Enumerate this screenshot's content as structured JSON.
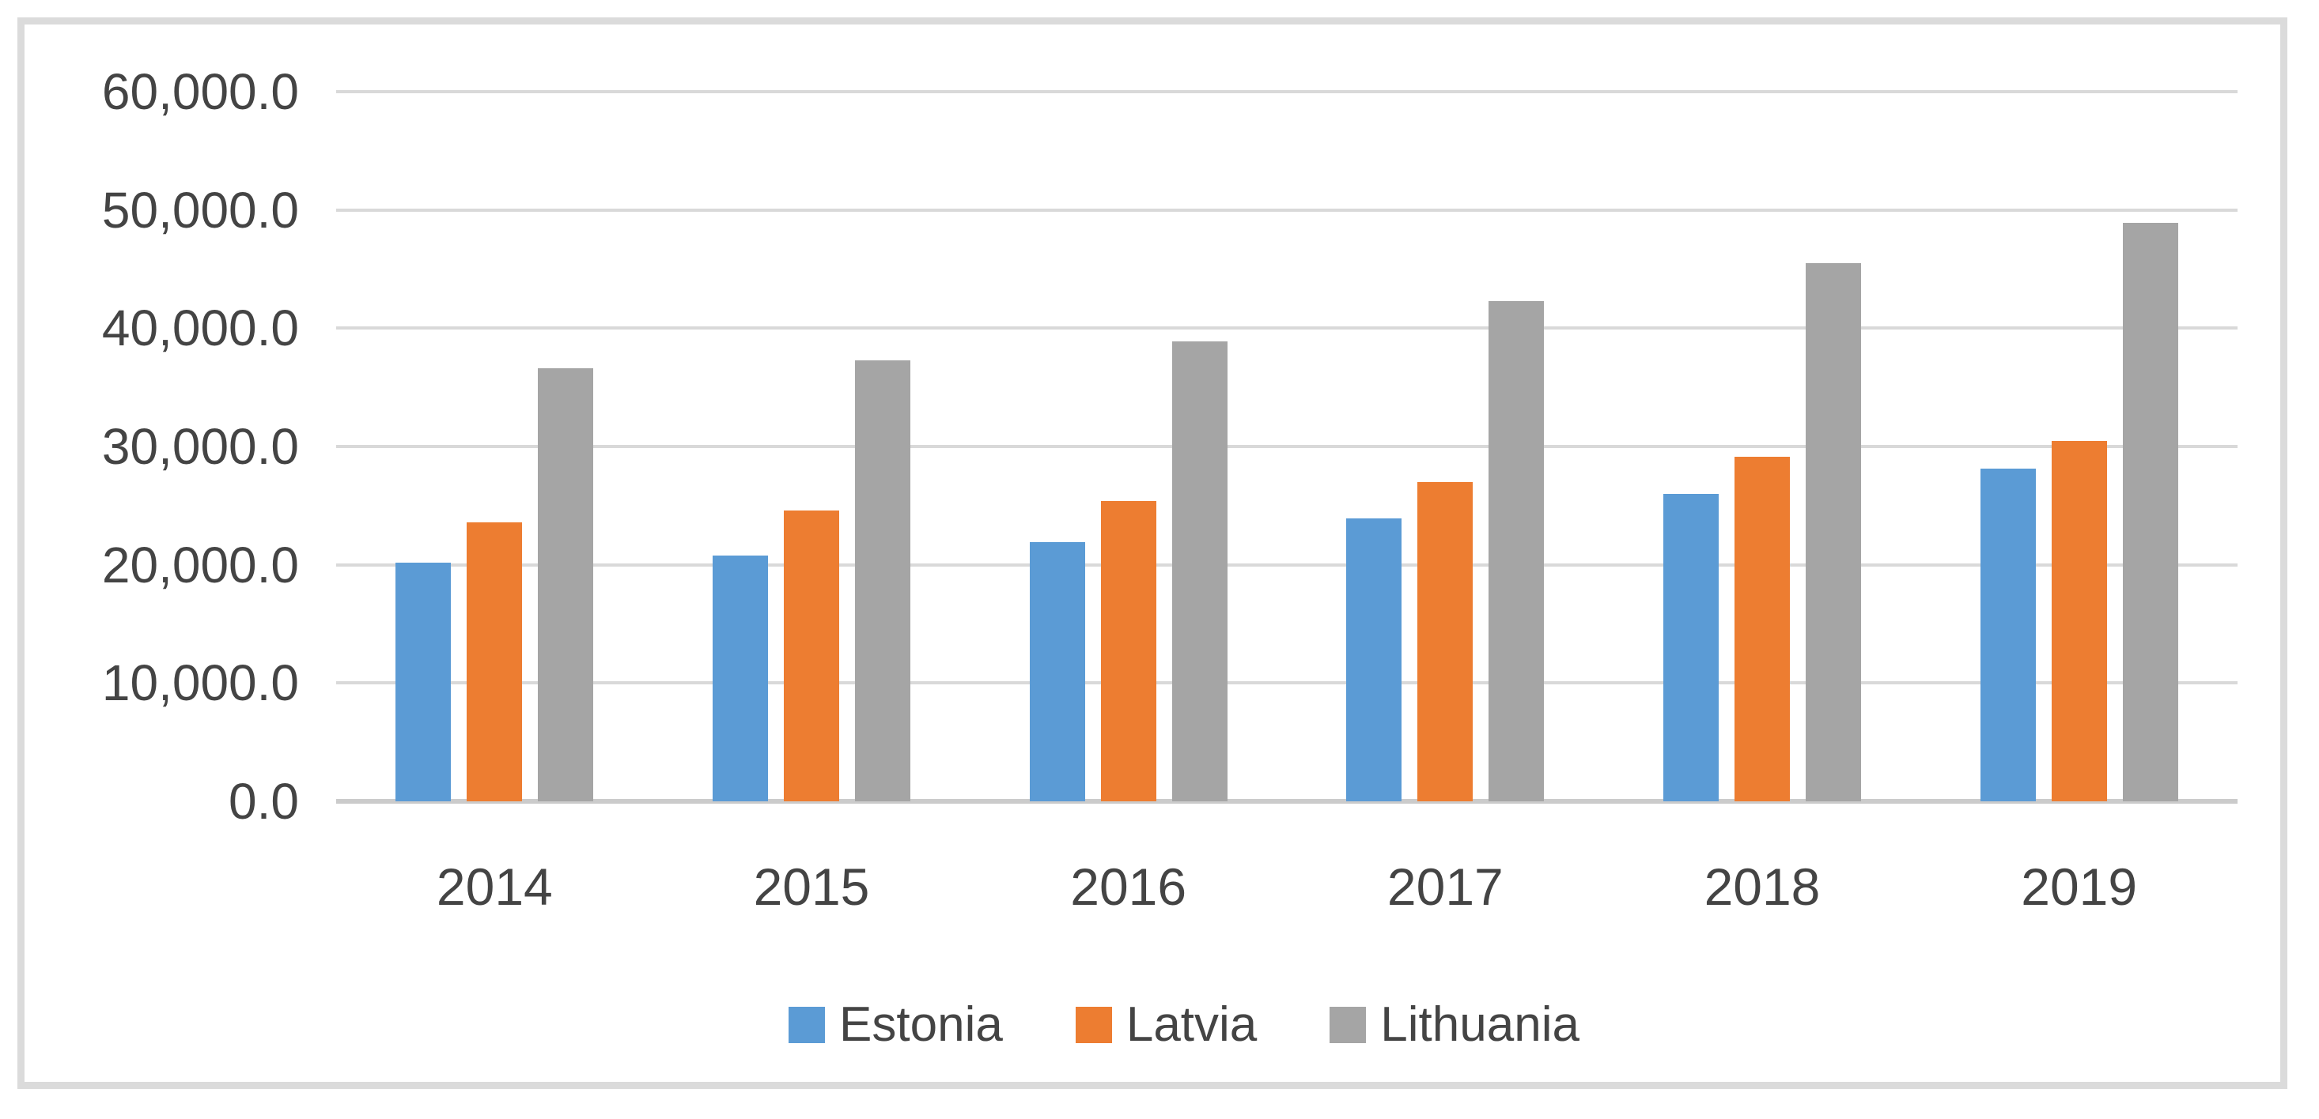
{
  "chart_data": {
    "type": "bar",
    "title": "",
    "categories": [
      "2014",
      "2015",
      "2016",
      "2017",
      "2018",
      "2019"
    ],
    "series": [
      {
        "name": "Estonia",
        "color": "#5B9BD5",
        "values": [
          20200,
          20800,
          21900,
          23900,
          26000,
          28100
        ]
      },
      {
        "name": "Latvia",
        "color": "#ED7D31",
        "values": [
          23600,
          24600,
          25400,
          27000,
          29100,
          30500
        ]
      },
      {
        "name": "Lithuania",
        "color": "#A5A5A5",
        "values": [
          36600,
          37300,
          38900,
          42300,
          45500,
          48900
        ]
      }
    ],
    "xlabel": "",
    "ylabel": "",
    "ylim": [
      0,
      60000
    ],
    "y_ticks": [
      {
        "value": 0,
        "label": "0.0"
      },
      {
        "value": 10000,
        "label": "10,000.0"
      },
      {
        "value": 20000,
        "label": "20,000.0"
      },
      {
        "value": 30000,
        "label": "30,000.0"
      },
      {
        "value": 40000,
        "label": "40,000.0"
      },
      {
        "value": 50000,
        "label": "50,000.0"
      },
      {
        "value": 60000,
        "label": "60,000.0"
      }
    ],
    "grid": true,
    "legend_position": "bottom",
    "legend_labels": [
      "Estonia",
      "Latvia",
      "Lithuania"
    ]
  },
  "colors": {
    "estonia": "#5B9BD5",
    "latvia": "#ED7D31",
    "lithuania": "#A5A5A5",
    "gridline": "#D9D9D9",
    "axis_line": "#CBCBCB",
    "tick_text": "#444444",
    "frame_border": "#DBDBDB",
    "background": "#FFFFFF"
  }
}
